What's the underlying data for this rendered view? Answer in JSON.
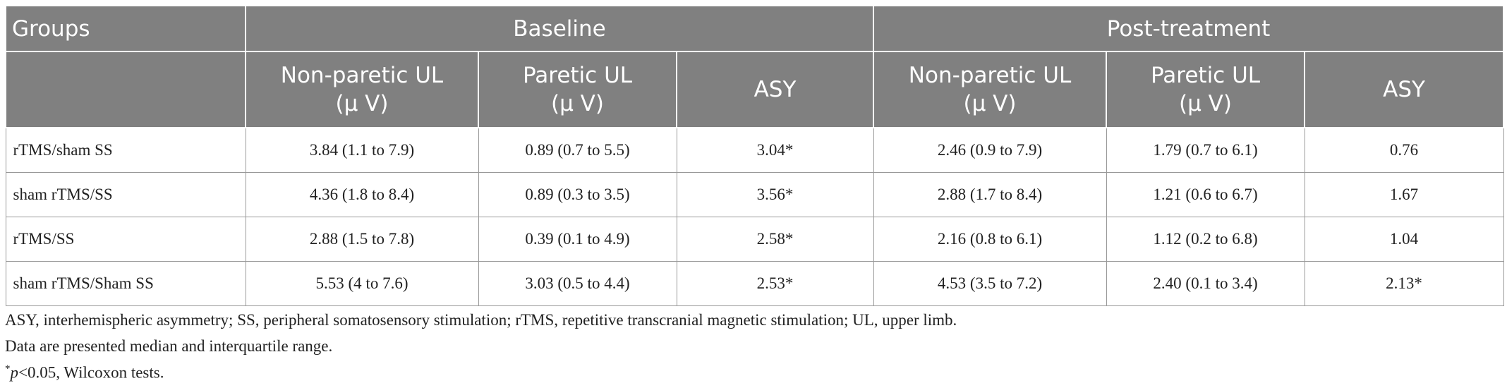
{
  "table": {
    "header": {
      "groups": "Groups",
      "baseline": "Baseline",
      "post": "Post-treatment"
    },
    "subheader": [
      {
        "label": "Non-paretic UL",
        "unit": "(μ V)"
      },
      {
        "label": "Paretic UL",
        "unit": "(μ V)"
      },
      {
        "label": "ASY"
      },
      {
        "label": "Non-paretic UL",
        "unit": "(μ V)"
      },
      {
        "label": "Paretic UL",
        "unit": "(μ V)"
      },
      {
        "label": "ASY"
      }
    ],
    "rows": [
      [
        "rTMS/sham SS",
        "3.84 (1.1 to 7.9)",
        "0.89 (0.7 to 5.5)",
        "3.04*",
        "2.46 (0.9 to 7.9)",
        "1.79 (0.7 to 6.1)",
        "0.76"
      ],
      [
        "sham rTMS/SS",
        "4.36 (1.8 to 8.4)",
        "0.89 (0.3 to 3.5)",
        "3.56*",
        "2.88 (1.7 to 8.4)",
        "1.21 (0.6 to 6.7)",
        "1.67"
      ],
      [
        "rTMS/SS",
        "2.88 (1.5 to 7.8)",
        "0.39 (0.1 to 4.9)",
        "2.58*",
        "2.16 (0.8 to 6.1)",
        "1.12 (0.2 to 6.8)",
        "1.04"
      ],
      [
        "sham rTMS/Sham SS",
        "5.53 (4 to 7.6)",
        "3.03 (0.5 to 4.4)",
        "2.53*",
        "4.53 (3.5 to 7.2)",
        "2.40 (0.1 to 3.4)",
        "2.13*"
      ]
    ]
  },
  "footnotes": {
    "abbreviations": "ASY, interhemispheric asymmetry; SS, peripheral somatosensory stimulation; rTMS, repetitive transcranial magnetic stimulation; UL, upper limb.",
    "data_note": "Data are presented median and interquartile range.",
    "significance": {
      "mark": "*",
      "symbol": "p",
      "text": "<0.05, Wilcoxon tests."
    }
  }
}
